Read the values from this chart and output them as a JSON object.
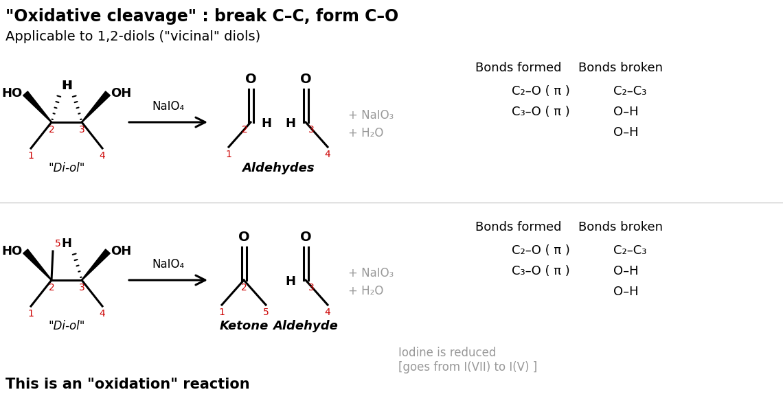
{
  "title_line1": "\"Oxidative cleavage\" : break C–C, form C–O",
  "title_line2": "Applicable to 1,2-diols (\"vicinal\" diols)",
  "bottom_text": "This is an \"oxidation\" reaction",
  "iodine_text": "Iodine is reduced\n[goes from I(VII) to I(V) ]",
  "bg_color": "#ffffff",
  "black": "#000000",
  "red": "#cc0000",
  "gray": "#999999"
}
